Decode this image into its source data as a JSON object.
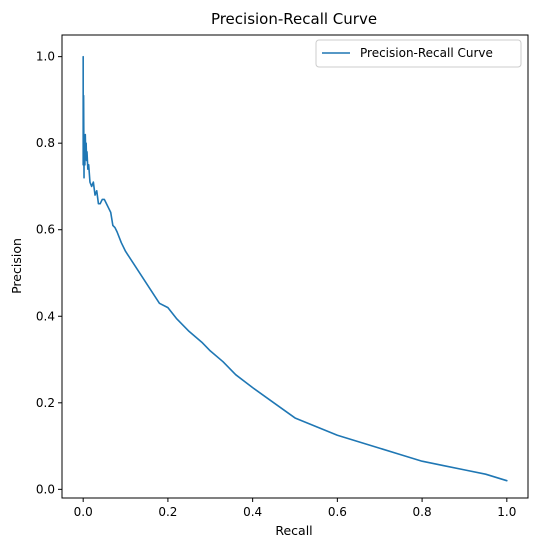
{
  "chart_data": {
    "type": "line",
    "title": "Precision-Recall Curve",
    "xlabel": "Recall",
    "ylabel": "Precision",
    "xlim": [
      -0.05,
      1.05
    ],
    "ylim": [
      -0.02,
      1.05
    ],
    "xticks": [
      0.0,
      0.2,
      0.4,
      0.6,
      0.8,
      1.0
    ],
    "xtick_labels": [
      "0.0",
      "0.2",
      "0.4",
      "0.6",
      "0.8",
      "1.0"
    ],
    "yticks": [
      0.0,
      0.2,
      0.4,
      0.6,
      0.8,
      1.0
    ],
    "ytick_labels": [
      "0.0",
      "0.2",
      "0.4",
      "0.6",
      "0.8",
      "1.0"
    ],
    "grid": false,
    "legend": {
      "position": "top-right",
      "entries": [
        "Precision-Recall Curve"
      ]
    },
    "series": [
      {
        "name": "Precision-Recall Curve",
        "color": "#1f77b4",
        "x": [
          0.0,
          0.0,
          0.001,
          0.002,
          0.002,
          0.003,
          0.003,
          0.004,
          0.005,
          0.006,
          0.007,
          0.008,
          0.009,
          0.011,
          0.013,
          0.016,
          0.02,
          0.024,
          0.028,
          0.032,
          0.036,
          0.04,
          0.045,
          0.05,
          0.055,
          0.06,
          0.065,
          0.07,
          0.075,
          0.08,
          0.09,
          0.1,
          0.12,
          0.14,
          0.16,
          0.18,
          0.2,
          0.22,
          0.25,
          0.28,
          0.3,
          0.33,
          0.36,
          0.4,
          0.45,
          0.5,
          0.55,
          0.6,
          0.65,
          0.7,
          0.75,
          0.8,
          0.85,
          0.9,
          0.95,
          1.0
        ],
        "y": [
          1.0,
          0.75,
          0.91,
          0.72,
          0.8,
          0.76,
          0.79,
          0.75,
          0.82,
          0.77,
          0.8,
          0.76,
          0.78,
          0.74,
          0.75,
          0.71,
          0.7,
          0.71,
          0.68,
          0.69,
          0.66,
          0.66,
          0.67,
          0.67,
          0.66,
          0.65,
          0.64,
          0.61,
          0.605,
          0.595,
          0.57,
          0.55,
          0.52,
          0.49,
          0.46,
          0.43,
          0.42,
          0.395,
          0.365,
          0.34,
          0.32,
          0.295,
          0.265,
          0.235,
          0.2,
          0.165,
          0.145,
          0.125,
          0.11,
          0.095,
          0.08,
          0.065,
          0.055,
          0.045,
          0.035,
          0.02
        ]
      }
    ]
  }
}
